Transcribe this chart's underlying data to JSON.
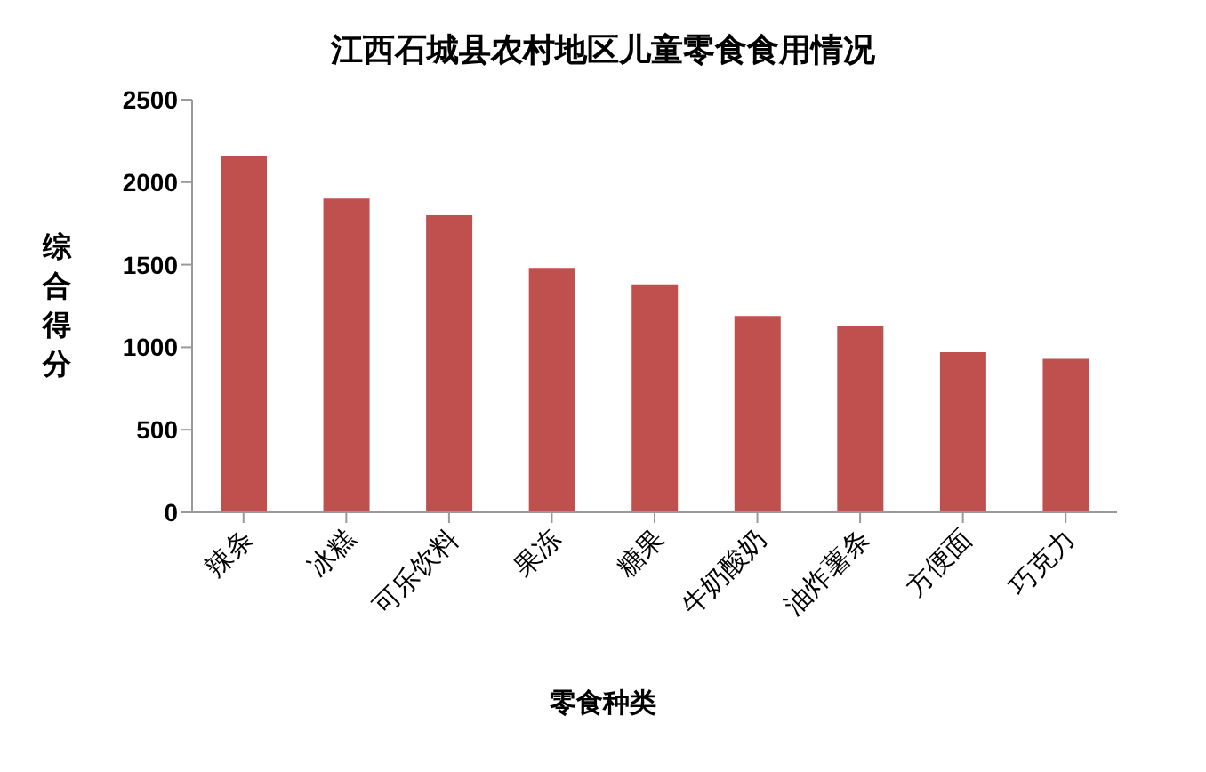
{
  "chart_data": {
    "type": "bar",
    "title": "江西石城县农村地区儿童零食食用情况",
    "xlabel": "零食种类",
    "ylabel": "综合得分",
    "categories": [
      "辣条",
      "冰糕",
      "可乐饮料",
      "果冻",
      "糖果",
      "牛奶酸奶",
      "油炸薯条",
      "方便面",
      "巧克力"
    ],
    "values": [
      2160,
      1900,
      1800,
      1480,
      1380,
      1190,
      1130,
      970,
      930
    ],
    "color": "#c0504d",
    "ylim": [
      0,
      2500
    ],
    "yticks": [
      0,
      500,
      1000,
      1500,
      2000,
      2500
    ],
    "grid": false,
    "legend": false
  }
}
